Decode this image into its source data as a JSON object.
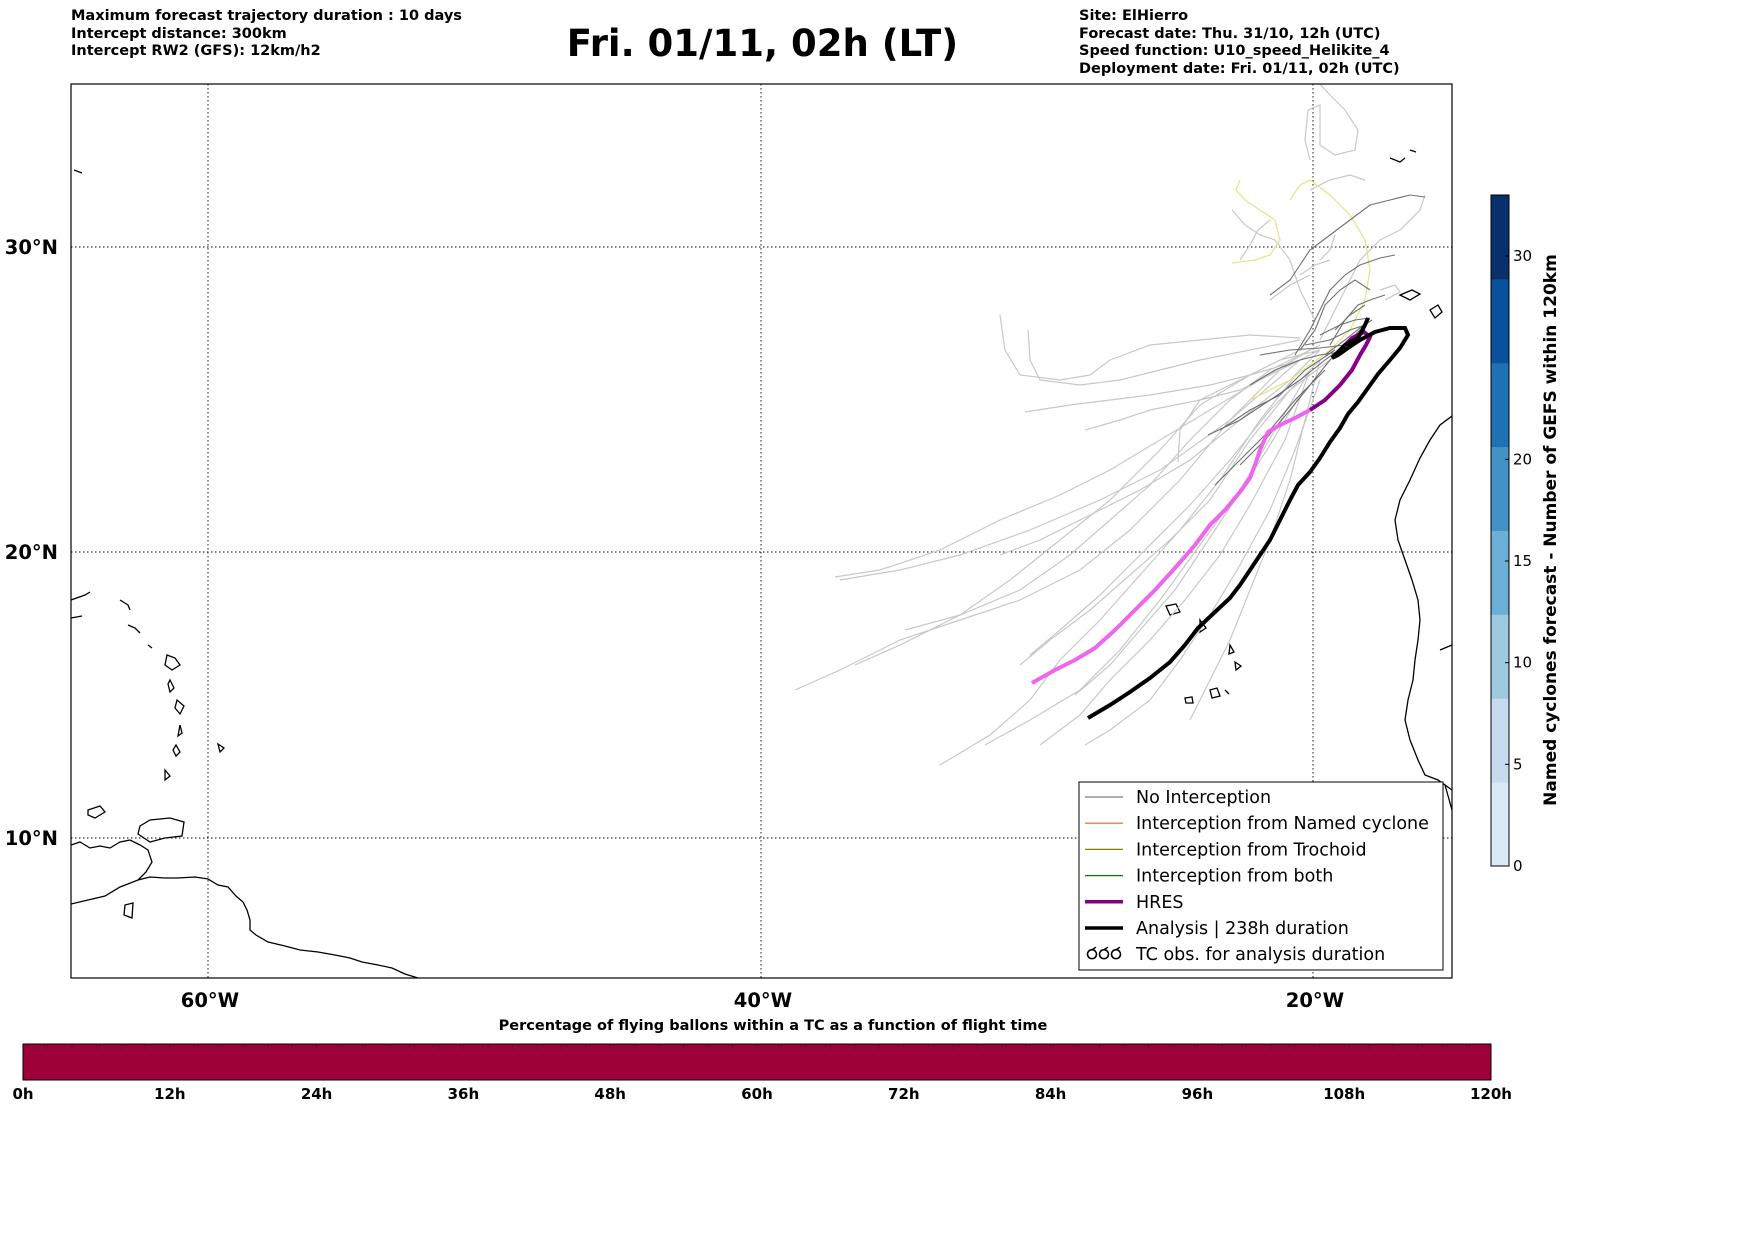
{
  "header_left": [
    "Maximum forecast trajectory duration : 10 days",
    "Intercept distance: 300km",
    "Intercept RW2 (GFS):  12km/h2"
  ],
  "title": "Fri. 01/11, 02h (LT)",
  "header_right": [
    "Site: ElHierro",
    "Forecast date: Thu. 31/10, 12h (UTC)",
    "Speed function: U10_speed_Helikite_4",
    "Deployment date: Fri. 01/11, 02h (UTC)"
  ],
  "map": {
    "lon_labels": [
      "60°W",
      "40°W",
      "20°W"
    ],
    "lat_labels": [
      "30°N",
      "20°N",
      "10°N"
    ],
    "grid": "dotted"
  },
  "legend": {
    "placement": "lower-right",
    "items": [
      {
        "label": "No Interception",
        "color": "#808080",
        "style": "thin-line"
      },
      {
        "label": "Interception from Named cyclone",
        "color": "#ff5722",
        "style": "thin-line"
      },
      {
        "label": "Interception from Trochoid",
        "color": "#808000",
        "style": "thin-line"
      },
      {
        "label": "Interception from both",
        "color": "#008000",
        "style": "thin-line"
      },
      {
        "label": "HRES",
        "color": "#800080",
        "style": "thick-line"
      },
      {
        "label": "Analysis | 238h duration",
        "color": "#000000",
        "style": "thick-line"
      },
      {
        "label": "TC obs. for analysis duration",
        "color": "#000000",
        "style": "cyclone-symbols"
      }
    ]
  },
  "colorbar_right": {
    "label": "Named cyclones forecast - Number of GEFS within 120km",
    "ticks": [
      "0",
      "5",
      "10",
      "15",
      "20",
      "30"
    ],
    "tick_values": [
      0,
      5,
      10,
      15,
      20,
      30
    ],
    "max": 33,
    "colors": [
      "#dbe9f6",
      "#c6dbef",
      "#9ecae1",
      "#6baed6",
      "#4292c6",
      "#2171b5",
      "#08519c",
      "#08306b"
    ]
  },
  "colorbar_bottom": {
    "label": "Percentage of flying ballons within a TC as a function of flight time",
    "ticks": [
      "0h",
      "12h",
      "24h",
      "36h",
      "48h",
      "60h",
      "72h",
      "84h",
      "96h",
      "108h",
      "120h"
    ],
    "fill_color": "#9e003a"
  }
}
